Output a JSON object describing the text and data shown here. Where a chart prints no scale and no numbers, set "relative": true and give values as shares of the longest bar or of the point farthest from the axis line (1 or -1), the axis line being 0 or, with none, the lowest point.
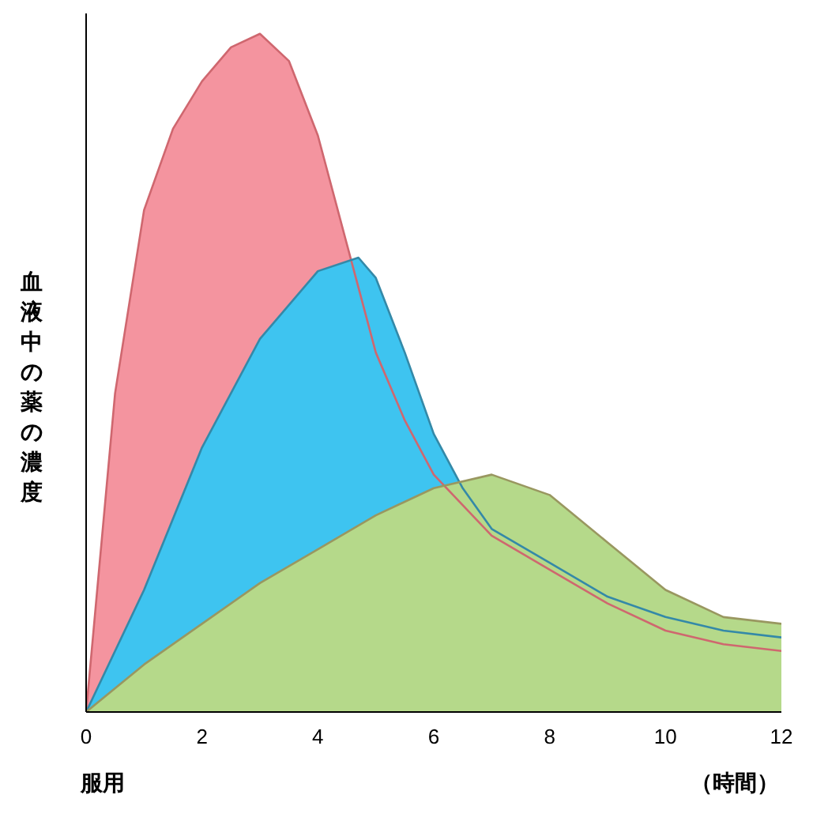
{
  "chart_data": {
    "type": "area",
    "relative": true,
    "xlabel": "（時間）",
    "ylabel": "血液中の薬の濃度",
    "annotations": [
      "服用"
    ],
    "xlim": [
      0,
      12
    ],
    "xticks": [
      0,
      2,
      4,
      6,
      8,
      10,
      12
    ],
    "tick_labels": "x",
    "grid": false,
    "marker": "none",
    "series": [
      {
        "color": "#f4949f",
        "x": [
          0,
          0.5,
          1,
          1.5,
          2,
          2.5,
          3,
          3.5,
          4,
          4.5,
          5,
          5.5,
          6,
          7,
          8,
          9,
          10,
          11,
          12
        ],
        "values": [
          0,
          0.47,
          0.74,
          0.86,
          0.93,
          0.98,
          1.0,
          0.96,
          0.85,
          0.69,
          0.53,
          0.43,
          0.35,
          0.26,
          0.21,
          0.16,
          0.12,
          0.1,
          0.09
        ]
      },
      {
        "color": "#3ec4f0",
        "x": [
          0,
          1,
          2,
          3,
          4,
          4.7,
          5,
          5.5,
          6,
          6.5,
          7,
          8,
          9,
          10,
          11,
          12
        ],
        "values": [
          0,
          0.18,
          0.39,
          0.55,
          0.65,
          0.67,
          0.64,
          0.53,
          0.41,
          0.33,
          0.27,
          0.22,
          0.17,
          0.14,
          0.12,
          0.11
        ]
      },
      {
        "color": "#b5d98a",
        "x": [
          0,
          1,
          2,
          3,
          4,
          5,
          6,
          7,
          8,
          9,
          10,
          11,
          12
        ],
        "values": [
          0,
          0.07,
          0.13,
          0.19,
          0.24,
          0.29,
          0.33,
          0.35,
          0.32,
          0.25,
          0.18,
          0.14,
          0.13
        ]
      }
    ]
  }
}
